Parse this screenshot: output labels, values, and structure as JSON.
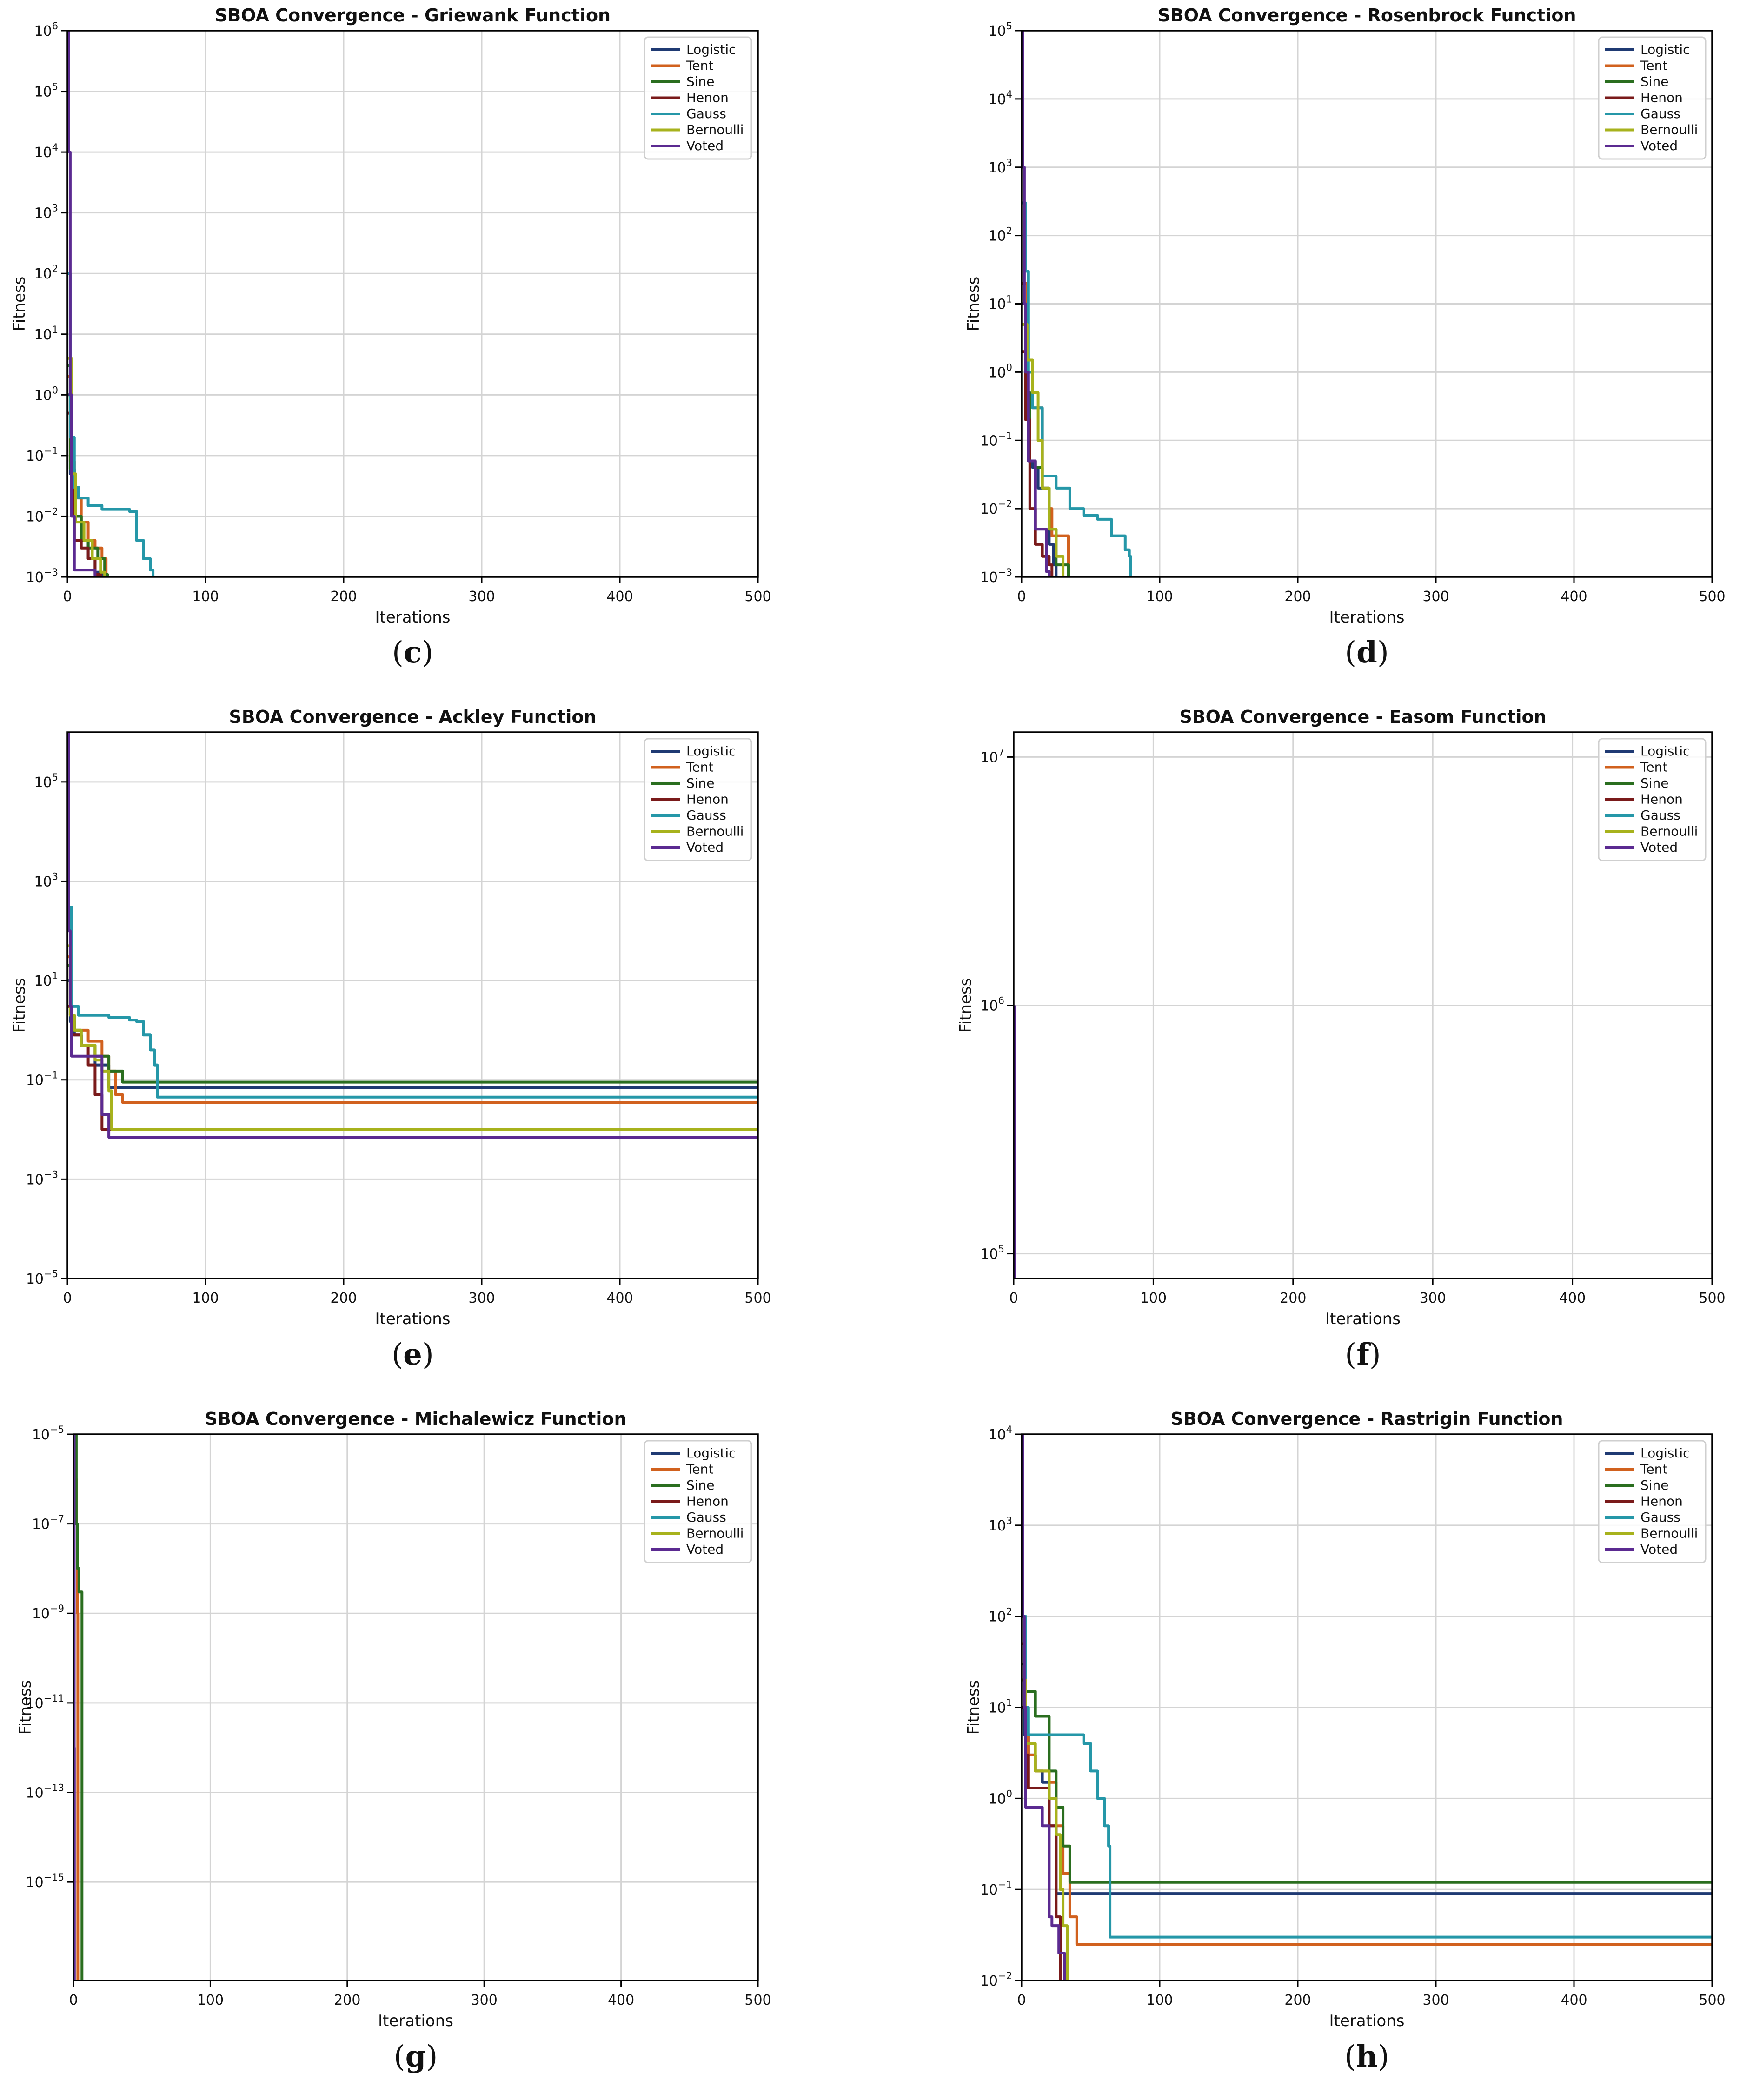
{
  "series_colors": {
    "Logistic": "#1f3a73",
    "Tent": "#d1611e",
    "Sine": "#2a6e1f",
    "Henon": "#7a1a1a",
    "Gauss": "#2597a8",
    "Bernoulli": "#a7b21c",
    "Voted": "#5b2a91"
  },
  "chart_data": [
    {
      "id": "c",
      "panel_label": "(c)",
      "type": "line",
      "yscale": "log",
      "title": "SBOA Convergence - Griewank Function",
      "xlabel": "Iterations",
      "ylabel": "Fitness",
      "xlim": [
        0,
        500
      ],
      "ylim_exp": [
        -3,
        6
      ],
      "xticks": [
        0,
        100,
        200,
        300,
        400,
        500
      ],
      "yticks": [
        "10^-3",
        "10^-2",
        "10^-1",
        "10^0",
        "10^1",
        "10^2",
        "10^3",
        "10^4",
        "10^5",
        "10^6"
      ],
      "ytick_exps": [
        -3,
        -2,
        -1,
        0,
        1,
        2,
        3,
        4,
        5,
        6
      ],
      "legend": [
        "Logistic",
        "Tent",
        "Sine",
        "Henon",
        "Gauss",
        "Bernoulli",
        "Voted"
      ],
      "series": [
        {
          "name": "Logistic",
          "x": [
            0,
            2,
            5,
            10,
            15,
            20,
            25,
            27
          ],
          "y": [
            1,
            0.05,
            0.01,
            0.004,
            0.002,
            0.0012,
            0.0011,
            0.0009
          ]
        },
        {
          "name": "Tent",
          "x": [
            0,
            2,
            5,
            10,
            15,
            20,
            25,
            28
          ],
          "y": [
            2,
            0.08,
            0.02,
            0.008,
            0.004,
            0.003,
            0.002,
            0.0009
          ]
        },
        {
          "name": "Sine",
          "x": [
            0,
            2,
            5,
            10,
            15,
            22,
            27,
            29
          ],
          "y": [
            3,
            0.06,
            0.01,
            0.004,
            0.003,
            0.002,
            0.0011,
            0.0009
          ]
        },
        {
          "name": "Henon",
          "x": [
            0,
            3,
            5,
            10,
            15,
            20,
            24
          ],
          "y": [
            0.5,
            0.04,
            0.004,
            0.003,
            0.002,
            0.0011,
            0.0009
          ]
        },
        {
          "name": "Gauss",
          "x": [
            0,
            2,
            5,
            8,
            15,
            25,
            35,
            45,
            50,
            55,
            60,
            62
          ],
          "y": [
            100,
            0.2,
            0.03,
            0.02,
            0.015,
            0.013,
            0.013,
            0.012,
            0.004,
            0.002,
            0.0013,
            0.0009
          ]
        },
        {
          "name": "Bernoulli",
          "x": [
            0,
            3,
            6,
            12,
            18,
            24,
            27
          ],
          "y": [
            4,
            0.05,
            0.008,
            0.004,
            0.002,
            0.0012,
            0.0009
          ]
        },
        {
          "name": "Voted",
          "x": [
            0,
            1,
            2,
            3,
            5,
            18,
            20
          ],
          "y": [
            1000000,
            10000,
            1,
            0.01,
            0.0013,
            0.0013,
            0.0009
          ]
        }
      ]
    },
    {
      "id": "d",
      "panel_label": "(d)",
      "type": "line",
      "yscale": "log",
      "title": "SBOA Convergence - Rosenbrock Function",
      "xlabel": "Iterations",
      "ylabel": "Fitness",
      "xlim": [
        0,
        500
      ],
      "ylim_exp": [
        -3,
        5
      ],
      "xticks": [
        0,
        100,
        200,
        300,
        400,
        500
      ],
      "yticks": [
        "10^-3",
        "10^-2",
        "10^-1",
        "10^0",
        "10^1",
        "10^2",
        "10^3",
        "10^4",
        "10^5"
      ],
      "ytick_exps": [
        -3,
        -2,
        -1,
        0,
        1,
        2,
        3,
        4,
        5
      ],
      "legend": [
        "Logistic",
        "Tent",
        "Sine",
        "Henon",
        "Gauss",
        "Bernoulli",
        "Voted"
      ],
      "series": [
        {
          "name": "Logistic",
          "x": [
            0,
            3,
            5,
            8,
            12,
            20,
            23,
            25
          ],
          "y": [
            10,
            0.5,
            0.05,
            0.04,
            0.02,
            0.003,
            0.0015,
            0.0009
          ]
        },
        {
          "name": "Tent",
          "x": [
            0,
            4,
            8,
            15,
            20,
            22,
            30,
            33,
            34
          ],
          "y": [
            20,
            1,
            0.3,
            0.02,
            0.01,
            0.004,
            0.004,
            0.004,
            0.0009
          ]
        },
        {
          "name": "Sine",
          "x": [
            0,
            3,
            6,
            10,
            15,
            20,
            25,
            33,
            34
          ],
          "y": [
            5,
            0.5,
            0.05,
            0.04,
            0.02,
            0.005,
            0.0015,
            0.0015,
            0.0009
          ]
        },
        {
          "name": "Henon",
          "x": [
            0,
            3,
            6,
            10,
            15,
            20,
            22
          ],
          "y": [
            2,
            0.2,
            0.01,
            0.003,
            0.002,
            0.0015,
            0.0009
          ]
        },
        {
          "name": "Gauss",
          "x": [
            0,
            3,
            5,
            8,
            15,
            25,
            35,
            45,
            55,
            65,
            75,
            78,
            79
          ],
          "y": [
            300,
            30,
            1,
            0.3,
            0.03,
            0.02,
            0.01,
            0.008,
            0.007,
            0.004,
            0.0025,
            0.002,
            0.0009
          ]
        },
        {
          "name": "Bernoulli",
          "x": [
            0,
            4,
            8,
            12,
            15,
            20,
            25,
            30
          ],
          "y": [
            5,
            1.5,
            0.5,
            0.1,
            0.02,
            0.005,
            0.002,
            0.0009
          ]
        },
        {
          "name": "Voted",
          "x": [
            0,
            1,
            2,
            3,
            5,
            10,
            18,
            20
          ],
          "y": [
            100000,
            1000,
            10,
            1,
            0.05,
            0.005,
            0.0012,
            0.0009
          ]
        }
      ]
    },
    {
      "id": "e",
      "panel_label": "(e)",
      "type": "line",
      "yscale": "log",
      "title": "SBOA Convergence - Ackley Function",
      "xlabel": "Iterations",
      "ylabel": "Fitness",
      "xlim": [
        0,
        500
      ],
      "ylim_exp": [
        -5,
        6
      ],
      "xticks": [
        0,
        100,
        200,
        300,
        400,
        500
      ],
      "yticks": [
        "10^-5",
        "10^-3",
        "10^-1",
        "10^1",
        "10^3",
        "10^5"
      ],
      "ytick_exps": [
        -5,
        -3,
        -1,
        1,
        3,
        5
      ],
      "legend": [
        "Logistic",
        "Tent",
        "Sine",
        "Henon",
        "Gauss",
        "Bernoulli",
        "Voted"
      ],
      "series": [
        {
          "name": "Logistic",
          "x": [
            0,
            2,
            5,
            10,
            20,
            30,
            500
          ],
          "y": [
            10,
            1.5,
            0.8,
            0.5,
            0.2,
            0.07,
            0.07
          ]
        },
        {
          "name": "Tent",
          "x": [
            0,
            2,
            5,
            15,
            25,
            30,
            35,
            40,
            500
          ],
          "y": [
            30,
            2,
            1,
            0.6,
            0.3,
            0.15,
            0.05,
            0.035,
            0.035
          ]
        },
        {
          "name": "Sine",
          "x": [
            0,
            2,
            5,
            10,
            20,
            30,
            40,
            500
          ],
          "y": [
            20,
            2,
            1,
            0.5,
            0.3,
            0.15,
            0.09,
            0.09
          ]
        },
        {
          "name": "Henon",
          "x": [
            0,
            3,
            10,
            15,
            20,
            25,
            500
          ],
          "y": [
            3,
            0.8,
            0.5,
            0.2,
            0.05,
            0.01,
            0.01
          ]
        },
        {
          "name": "Gauss",
          "x": [
            0,
            3,
            8,
            20,
            30,
            45,
            50,
            55,
            60,
            63,
            65,
            500
          ],
          "y": [
            300,
            3,
            2,
            2,
            1.8,
            1.6,
            1.5,
            0.8,
            0.4,
            0.2,
            0.045,
            0.045
          ]
        },
        {
          "name": "Bernoulli",
          "x": [
            0,
            2,
            5,
            10,
            20,
            25,
            30,
            32,
            500
          ],
          "y": [
            50,
            2,
            1,
            0.5,
            0.25,
            0.15,
            0.06,
            0.01,
            0.01
          ]
        },
        {
          "name": "Voted",
          "x": [
            0,
            1,
            2,
            3,
            20,
            25,
            30,
            500
          ],
          "y": [
            1000000,
            100,
            3,
            0.3,
            0.3,
            0.02,
            0.007,
            0.007
          ]
        }
      ]
    },
    {
      "id": "f",
      "panel_label": "(f)",
      "type": "line",
      "yscale": "log",
      "title": "SBOA Convergence - Easom Function",
      "xlabel": "Iterations",
      "ylabel": "Fitness",
      "xlim": [
        0,
        500
      ],
      "ylim_exp": [
        4.9,
        7.1
      ],
      "xticks": [
        0,
        100,
        200,
        300,
        400,
        500
      ],
      "yticks": [
        "10^5",
        "10^6",
        "10^7"
      ],
      "ytick_exps": [
        5,
        6,
        7
      ],
      "legend": [
        "Logistic",
        "Tent",
        "Sine",
        "Henon",
        "Gauss",
        "Bernoulli",
        "Voted"
      ],
      "series": [
        {
          "name": "Voted",
          "x": [
            0.5,
            0.5,
            1
          ],
          "y": [
            1000000,
            80000,
            80000
          ]
        }
      ]
    },
    {
      "id": "g",
      "panel_label": "(g)",
      "type": "line",
      "yscale": "log",
      "title": "SBOA Convergence - Michalewicz Function",
      "xlabel": "Iterations",
      "ylabel": "Fitness",
      "xlim": [
        0,
        500
      ],
      "ylim_exp": [
        -17.2,
        -5
      ],
      "xticks": [
        0,
        100,
        200,
        300,
        400,
        500
      ],
      "yticks": [
        "10^-5",
        "10^-7",
        "10^-9",
        "10^-11",
        "10^-13",
        "10^-15"
      ],
      "ytick_exps": [
        -5,
        -7,
        -9,
        -11,
        -13,
        -15
      ],
      "legend": [
        "Logistic",
        "Tent",
        "Sine",
        "Henon",
        "Gauss",
        "Bernoulli",
        "Voted"
      ],
      "series": [
        {
          "name": "Tent",
          "x": [
            0,
            1,
            2,
            3,
            3.2
          ],
          "y": [
            1e-05,
            1e-06,
            1e-07,
            1e-09,
            1e-18
          ]
        },
        {
          "name": "Sine",
          "x": [
            0,
            2,
            3,
            4,
            6,
            6.2
          ],
          "y": [
            1e-05,
            1e-07,
            1e-08,
            3e-09,
            3e-09,
            1e-18
          ]
        },
        {
          "name": "Voted",
          "x": [
            0,
            0.5,
            0.6
          ],
          "y": [
            1e-05,
            1e-12,
            1e-18
          ]
        }
      ]
    },
    {
      "id": "h",
      "panel_label": "(h)",
      "type": "line",
      "yscale": "log",
      "title": "SBOA Convergence - Rastrigin Function",
      "xlabel": "Iterations",
      "ylabel": "Fitness",
      "xlim": [
        0,
        500
      ],
      "ylim_exp": [
        -2,
        4
      ],
      "xticks": [
        0,
        100,
        200,
        300,
        400,
        500
      ],
      "yticks": [
        "10^-2",
        "10^-1",
        "10^0",
        "10^1",
        "10^2",
        "10^3",
        "10^4"
      ],
      "ytick_exps": [
        -2,
        -1,
        0,
        1,
        2,
        3,
        4
      ],
      "legend": [
        "Logistic",
        "Tent",
        "Sine",
        "Henon",
        "Gauss",
        "Bernoulli",
        "Voted"
      ],
      "series": [
        {
          "name": "Logistic",
          "x": [
            0,
            2,
            5,
            10,
            15,
            20,
            25,
            500
          ],
          "y": [
            20,
            5,
            3,
            2,
            1.5,
            0.5,
            0.09,
            0.09
          ]
        },
        {
          "name": "Tent",
          "x": [
            0,
            3,
            5,
            10,
            20,
            25,
            30,
            35,
            40,
            500
          ],
          "y": [
            50,
            5,
            3,
            2,
            1.5,
            0.5,
            0.15,
            0.05,
            0.025,
            0.025
          ]
        },
        {
          "name": "Sine",
          "x": [
            0,
            3,
            10,
            20,
            25,
            30,
            35,
            40,
            500
          ],
          "y": [
            30,
            15,
            8,
            2,
            0.8,
            0.3,
            0.12,
            0.12,
            0.12
          ]
        },
        {
          "name": "Henon",
          "x": [
            0,
            3,
            5,
            15,
            20,
            25,
            28
          ],
          "y": [
            10,
            3,
            1.3,
            1.3,
            0.5,
            0.05,
            0.01
          ]
        },
        {
          "name": "Gauss",
          "x": [
            0,
            3,
            5,
            40,
            45,
            50,
            55,
            60,
            63,
            64,
            500
          ],
          "y": [
            100,
            10,
            5,
            5,
            4,
            2,
            1,
            0.5,
            0.3,
            0.03,
            0.03
          ]
        },
        {
          "name": "Bernoulli",
          "x": [
            0,
            3,
            10,
            20,
            25,
            28,
            30,
            32,
            33
          ],
          "y": [
            20,
            4,
            2,
            1,
            0.4,
            0.1,
            0.04,
            0.04,
            0.01
          ]
        },
        {
          "name": "Voted",
          "x": [
            0,
            1,
            2,
            3,
            10,
            15,
            20,
            22,
            27,
            30,
            31
          ],
          "y": [
            10000,
            100,
            10,
            0.8,
            0.8,
            0.5,
            0.05,
            0.04,
            0.02,
            0.02,
            0.01
          ]
        }
      ]
    }
  ]
}
